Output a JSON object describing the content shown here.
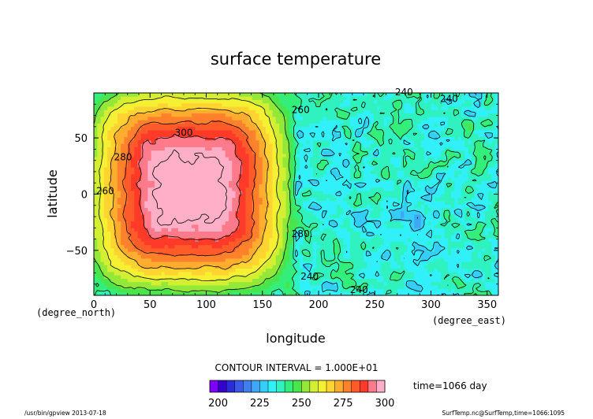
{
  "chart_data": {
    "type": "heatmap",
    "title": "surface temperature",
    "xlabel": "longitude",
    "ylabel": "latitude",
    "x_unit": "(degree_east)",
    "y_unit": "(degree_north)",
    "xlim": [
      0,
      360
    ],
    "ylim": [
      -90,
      90
    ],
    "x_ticks": [
      0,
      50,
      100,
      150,
      200,
      250,
      300,
      350
    ],
    "y_ticks": [
      -50,
      0,
      50
    ],
    "x_tick_labels": [
      "0",
      "50",
      "100",
      "150",
      "200",
      "250",
      "300",
      "350"
    ],
    "y_tick_labels": [
      "−50",
      "0",
      "50"
    ],
    "contour_interval_text": "CONTOUR INTERVAL = 1.000E+01",
    "contour_labels": [
      {
        "text": "300",
        "x": 72,
        "y": 52
      },
      {
        "text": "280",
        "x": 18,
        "y": 30
      },
      {
        "text": "260",
        "x": 2,
        "y": 0
      },
      {
        "text": "260",
        "x": 176,
        "y": 72
      },
      {
        "text": "280.",
        "x": 176,
        "y": -38
      },
      {
        "text": "240",
        "x": 184,
        "y": -76
      },
      {
        "text": "240.",
        "x": 228,
        "y": -88
      },
      {
        "text": "240",
        "x": 268,
        "y": 88
      },
      {
        "text": "240",
        "x": 308,
        "y": 82
      }
    ],
    "colorbar": {
      "min": 195,
      "max": 320,
      "step": 5,
      "tick_values": [
        200,
        225,
        250,
        275,
        300
      ],
      "tick_labels": [
        "200",
        "225",
        "250",
        "275",
        "300"
      ],
      "colors": [
        "#7f00ff",
        "#3300cc",
        "#2b2bd9",
        "#3a5ae6",
        "#3f7fef",
        "#3fa7f5",
        "#35cdfa",
        "#31f0fa",
        "#2ff2bf",
        "#33ef7a",
        "#4ae54b",
        "#93e838",
        "#d2ef32",
        "#f5f032",
        "#ffd431",
        "#ffad2e",
        "#ff812c",
        "#ff5a2a",
        "#ff3a28",
        "#ff7a8a",
        "#ffb0c8"
      ]
    },
    "series": [
      {
        "type": "warm-pole",
        "center": [
          85,
          5
        ],
        "peak": 310
      },
      {
        "type": "background",
        "region": "lon 180-360",
        "range": [
          225,
          245
        ]
      }
    ],
    "time_text": "time=1066 day",
    "footer_left": "/usr/bin/gpview  2013-07-18",
    "footer_right": "SurfTemp.nc@SurfTemp,time=1066:1095"
  }
}
